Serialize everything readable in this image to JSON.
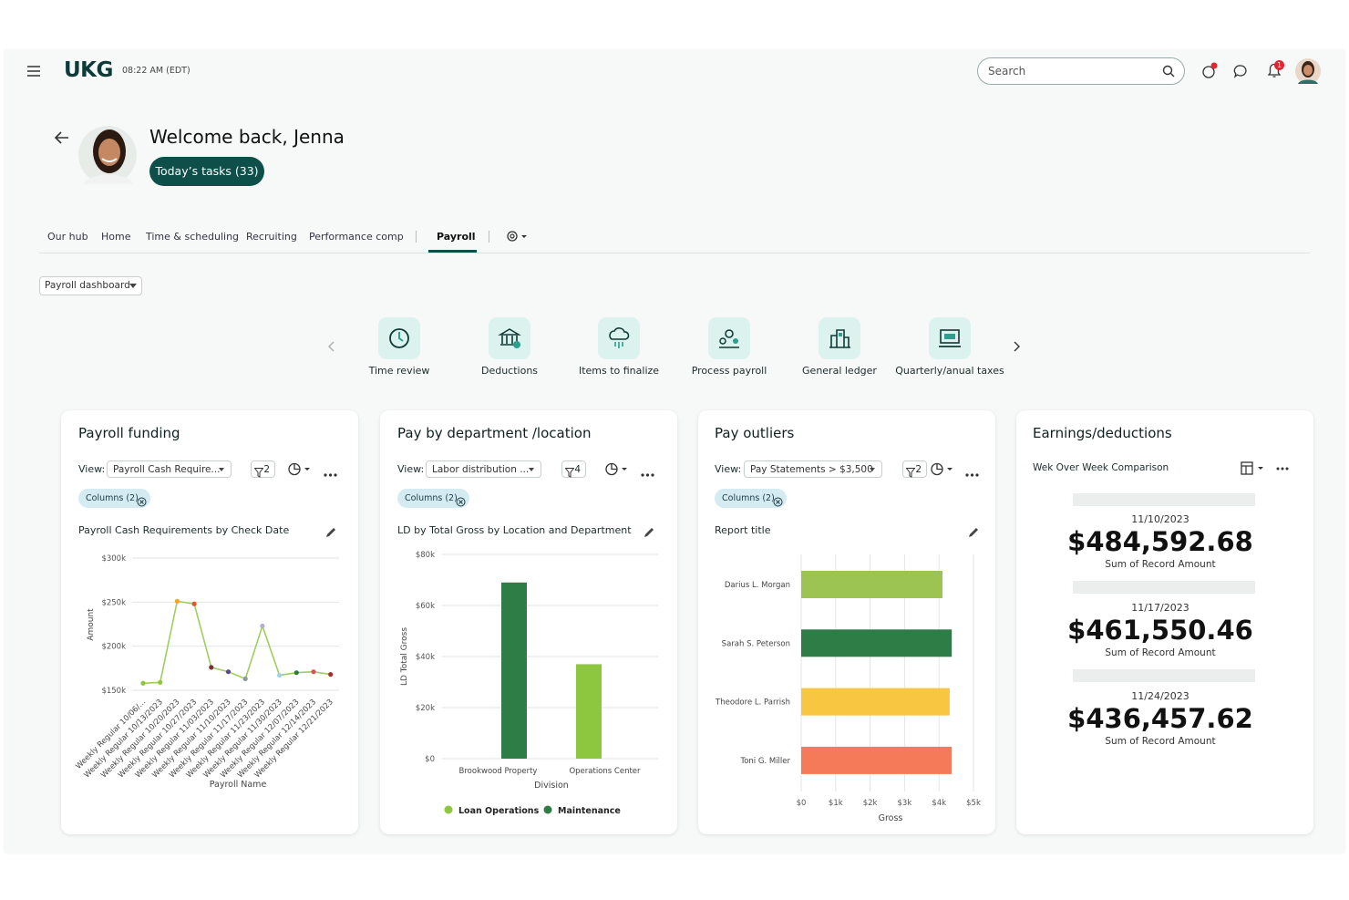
{
  "header": {
    "logo": "UKG",
    "time": "08:22 AM (EDT)",
    "search_placeholder": "Search",
    "notification_count": "1"
  },
  "welcome": {
    "title": "Welcome back, Jenna",
    "tasks_button": "Today’s tasks (33)"
  },
  "tabs": [
    "Our hub",
    "Home",
    "Time & scheduling",
    "Recruiting",
    "Performance comp",
    "Payroll"
  ],
  "dashboard_select": "Payroll dashboard",
  "quick_links": [
    "Time review",
    "Deductions",
    "Items to finalize",
    "Process payroll",
    "General ledger",
    "Quarterly/anual taxes"
  ],
  "cards": [
    {
      "title": "Payroll  funding",
      "view_label": "View:",
      "view_value": "Payroll Cash Require...",
      "filter_count": "2",
      "columns_chip": "Columns (2)",
      "chart_title": "Payroll Cash Requirements by Check Date",
      "chart": {
        "type": "line",
        "categories": [
          "Weekly Regular 10/06/...",
          "Weekly Regular 10/13/2023",
          "Weekly Regular 10/20/2023",
          "Weekly Regular 10/27/2023",
          "Weekly Regular 11/03/2023",
          "Weekly Regular 11/10/2023",
          "Weekly Regular 11/17/2023",
          "Weekly Regular 11/23/2023",
          "Weekly Regular 11/30/2023",
          "Weekly Regular 12/07/2023",
          "Weekly Regular 12/14/2023",
          "Weekly Regular 12/21/2023"
        ],
        "values": [
          158000,
          159000,
          251000,
          248000,
          176000,
          171000,
          163000,
          223000,
          167000,
          170000,
          171000,
          168000
        ],
        "color": "#9dcf5f",
        "point_colors": [
          "#8dc63f",
          "#8dc63f",
          "#f5a623",
          "#e4572e",
          "#7b2d3b",
          "#5b4a8a",
          "#8a9a9a",
          "#b8a9d9",
          "#9fd3e8",
          "#2e7d46",
          "#d9534f",
          "#a33333"
        ],
        "ylim": [
          150000,
          300000
        ],
        "yticks": [
          {
            "value": 150000,
            "label": "$150k"
          },
          {
            "value": 200000,
            "label": "$200k"
          },
          {
            "value": 250000,
            "label": "$250k"
          },
          {
            "value": 300000,
            "label": "$300k"
          }
        ],
        "y_label": "Amount",
        "x_label": "Payroll Name",
        "grid": true
      }
    },
    {
      "title": "Pay by department /location",
      "view_label": "View:",
      "view_value": "Labor distribution ...",
      "filter_count": "4",
      "columns_chip": "Columns (2)",
      "chart_title": "LD by Total Gross by Location and Department",
      "chart": {
        "type": "bar",
        "categories": [
          "Brookwood Property",
          "Operations Center"
        ],
        "series": [
          {
            "name": "Loan Operations",
            "color": "#8dc63f",
            "values": [
              null,
              37000
            ]
          },
          {
            "name": "Maintenance",
            "color": "#2e7d46",
            "values": [
              69000,
              null
            ]
          }
        ],
        "ylim": [
          0,
          80000
        ],
        "yticks": [
          {
            "value": 0,
            "label": "$0"
          },
          {
            "value": 20000,
            "label": "$20k"
          },
          {
            "value": 40000,
            "label": "$40k"
          },
          {
            "value": 60000,
            "label": "$60k"
          },
          {
            "value": 80000,
            "label": "$80k"
          }
        ],
        "y_label": "LD Total Gross",
        "x_label": "Division",
        "grid": true
      }
    },
    {
      "title": "Pay outliers",
      "view_label": "View:",
      "view_value": "Pay Statements > $3,500",
      "filter_count": "2",
      "columns_chip": "Columns (2)",
      "chart_title": "Report title",
      "chart": {
        "type": "hbar",
        "categories": [
          "Darius L. Morgan",
          "Sarah S. Peterson",
          "Theodore L. Parrish",
          "Toni G. Miller"
        ],
        "values": [
          4100,
          4370,
          4310,
          4370
        ],
        "colors": [
          "#9bc453",
          "#2e7d46",
          "#f9c642",
          "#f47a5a"
        ],
        "xlim": [
          0,
          5000
        ],
        "xticks": [
          {
            "value": 0,
            "label": "$0"
          },
          {
            "value": 1000,
            "label": "$1k"
          },
          {
            "value": 2000,
            "label": "$2k"
          },
          {
            "value": 3000,
            "label": "$3k"
          },
          {
            "value": 4000,
            "label": "$4k"
          },
          {
            "value": 5000,
            "label": "$5k"
          }
        ],
        "x_label": "Gross",
        "grid": true
      }
    },
    {
      "title": "Earnings/deductions",
      "subtitle": "Wek Over Week Comparison",
      "kpis": [
        {
          "date": "11/10/2023",
          "amount": "$484,592.68",
          "label": "Sum of Record Amount"
        },
        {
          "date": "11/17/2023",
          "amount": "$461,550.46",
          "label": "Sum of Record Amount"
        },
        {
          "date": "11/24/2023",
          "amount": "$436,457.62",
          "label": "Sum of Record Amount"
        }
      ]
    }
  ]
}
